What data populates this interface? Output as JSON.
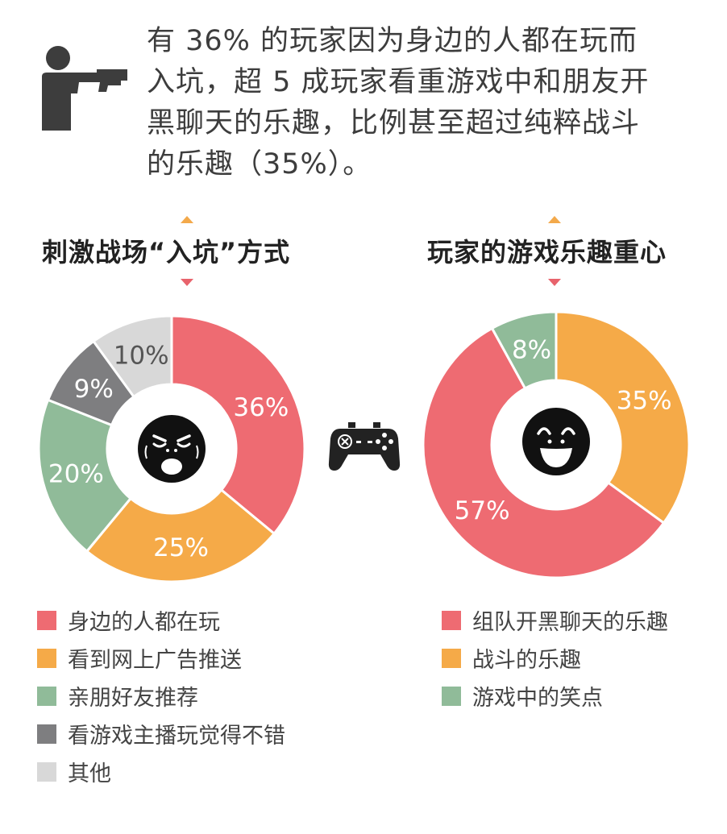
{
  "intro": {
    "lines": [
      "有 36% 的玩家因为身边的人都在玩而",
      "入坑，超 5 成玩家看重游戏中和朋友开",
      "黑聊天的乐趣，比例甚至超过纯粹战斗",
      "的乐趣（35%）。"
    ],
    "icon": "gunman-icon"
  },
  "colors": {
    "red": "#ee6b72",
    "orange": "#f5aa48",
    "green": "#90bb99",
    "gray": "#7e7e80",
    "lightgray": "#d8d8d8",
    "text": "#3d3d3d"
  },
  "chart_data": [
    {
      "type": "pie",
      "style": "donut",
      "title": "刺激战场“入坑”方式",
      "center_icon": "angry-face-icon",
      "slices": [
        {
          "label": "身边的人都在玩",
          "value": 36,
          "display": "36%",
          "color": "#ee6b72"
        },
        {
          "label": "看到网上广告推送",
          "value": 25,
          "display": "25%",
          "color": "#f5aa48"
        },
        {
          "label": "亲朋好友推荐",
          "value": 20,
          "display": "20%",
          "color": "#90bb99"
        },
        {
          "label": "看游戏主播玩觉得不错",
          "value": 9,
          "display": "9%",
          "color": "#7e7e80"
        },
        {
          "label": "其他",
          "value": 10,
          "display": "10%",
          "color": "#d8d8d8"
        }
      ]
    },
    {
      "type": "pie",
      "style": "donut",
      "title": "玩家的游戏乐趣重心",
      "center_icon": "happy-face-icon",
      "slices": [
        {
          "label": "战斗的乐趣",
          "value": 35,
          "display": "35%",
          "color": "#f5aa48"
        },
        {
          "label": "组队开黑聊天的乐趣",
          "value": 57,
          "display": "57%",
          "color": "#ee6b72"
        },
        {
          "label": "游戏中的笑点",
          "value": 8,
          "display": "8%",
          "color": "#90bb99"
        }
      ],
      "legend_order": [
        "组队开黑聊天的乐趣",
        "战斗的乐趣",
        "游戏中的笑点"
      ]
    }
  ],
  "divider_icon": "gamepad-icon"
}
